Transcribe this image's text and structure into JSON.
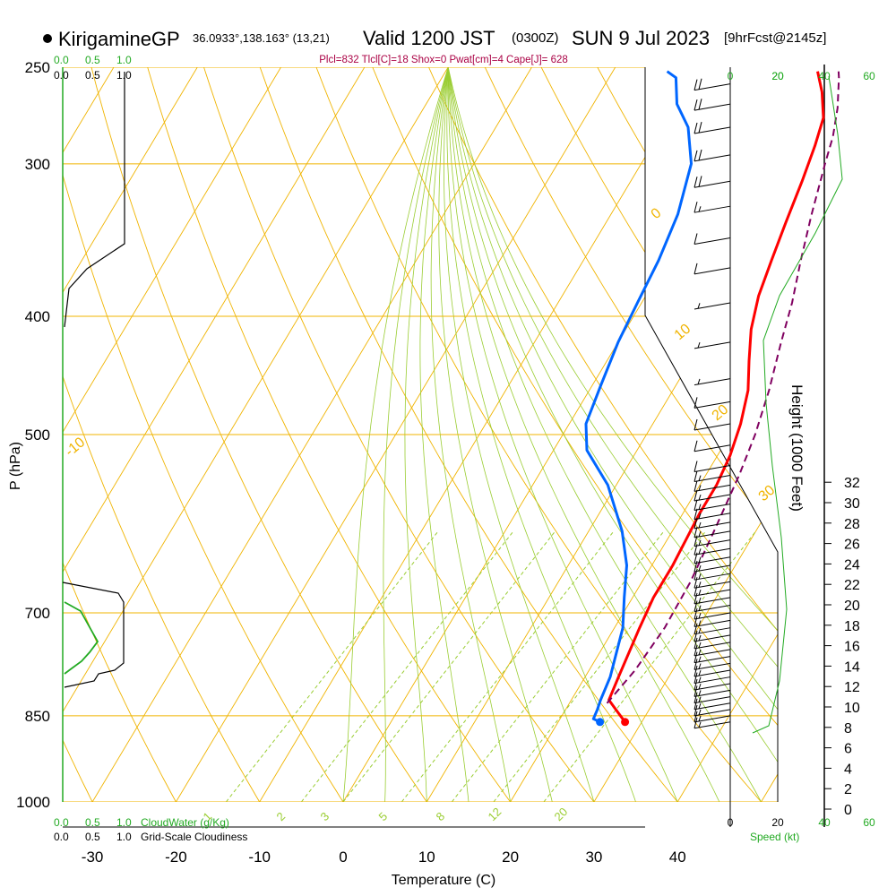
{
  "header": {
    "station": "KirigamineGP",
    "location": "36.0933°,138.163° (13,21)",
    "valid_main": "Valid 1200 JST",
    "valid_utc": "(0300Z)",
    "date": "SUN 9 Jul 2023",
    "forecast": "[9hrFcst@2145z]",
    "params": "Plcl=832 Tlcl[C]=18 Shox=0 Pwat[cm]=4 Cape[J]= 628"
  },
  "colors": {
    "isotherm": "#f0b400",
    "mixing_ratio": "#9acd32",
    "temperature": "#ff0000",
    "dewpoint": "#0066ff",
    "parcel": "#800060",
    "cloud_water": "#22aa22",
    "params_text": "#aa0044"
  },
  "chart_data": {
    "type": "line",
    "title": "KirigamineGP Valid 1200 JST SUN 9 Jul 2023",
    "xlabel": "Temperature (C)",
    "ylabel": "P (hPa)",
    "right_ylabel": "Height (1000 Feet)",
    "x_ticks": [
      -30,
      -20,
      -10,
      0,
      10,
      20,
      30,
      40
    ],
    "y_ticks": [
      250,
      300,
      400,
      500,
      700,
      850,
      1000
    ],
    "height_ticks": [
      0,
      2,
      4,
      6,
      8,
      10,
      12,
      14,
      16,
      18,
      20,
      22,
      24,
      26,
      28,
      30,
      32
    ],
    "skewt_label_vals": [
      -10,
      0,
      10,
      20,
      30
    ],
    "mixing_ratio_lines": [
      1,
      2,
      3,
      5,
      8,
      12,
      20
    ],
    "panel_labels": {
      "top_cloud_green": [
        "0.0",
        "0.5",
        "1.0"
      ],
      "top_cloud_black": [
        "0.0",
        "0.5",
        "1.0"
      ],
      "bottom_cloud_green": [
        "0.0",
        "0.5",
        "1.0"
      ],
      "bottom_cloud_black": [
        "0.0",
        "0.5",
        "1.0"
      ],
      "cloud_water_title": "CloudWater (g/Kg)",
      "cloudiness_title": "Grid-Scale Cloudiness",
      "wind_top_black": [
        "0",
        "20"
      ],
      "wind_top_green": [
        "20",
        "40",
        "60"
      ],
      "wind_bottom_black": [
        "0",
        "20"
      ],
      "wind_bottom_green": [
        "40",
        "60"
      ],
      "speed_title": "Speed (kt)"
    },
    "series": [
      {
        "name": "Temperature",
        "points": [
          [
            28.0,
            860
          ],
          [
            26.0,
            840
          ],
          [
            24.5,
            825
          ],
          [
            24.0,
            790
          ],
          [
            23.0,
            720
          ],
          [
            22.5,
            680
          ],
          [
            22.5,
            640
          ],
          [
            22.0,
            580
          ],
          [
            22.0,
            550
          ],
          [
            21.5,
            520
          ],
          [
            20.5,
            490
          ],
          [
            19.0,
            460
          ],
          [
            17.0,
            435
          ],
          [
            15.0,
            410
          ],
          [
            13.5,
            385
          ],
          [
            12.5,
            360
          ],
          [
            11.5,
            335
          ],
          [
            10.5,
            310
          ],
          [
            9.5,
            290
          ],
          [
            8.5,
            275
          ],
          [
            6.5,
            262
          ],
          [
            4.5,
            252
          ]
        ]
      },
      {
        "name": "Dewpoint",
        "points": [
          [
            25.0,
            860
          ],
          [
            24.0,
            855
          ],
          [
            23.8,
            840
          ],
          [
            23.5,
            825
          ],
          [
            23.0,
            790
          ],
          [
            21.0,
            720
          ],
          [
            19.0,
            680
          ],
          [
            17.0,
            640
          ],
          [
            14.0,
            600
          ],
          [
            9.0,
            550
          ],
          [
            4.0,
            515
          ],
          [
            2.0,
            490
          ],
          [
            1.0,
            455
          ],
          [
            0.0,
            420
          ],
          [
            -0.5,
            390
          ],
          [
            -1.0,
            360
          ],
          [
            -2.0,
            330
          ],
          [
            -4.0,
            300
          ],
          [
            -7.0,
            280
          ],
          [
            -10.0,
            268
          ],
          [
            -12.0,
            255
          ],
          [
            -13.5,
            252
          ]
        ]
      },
      {
        "name": "Parcel",
        "points": [
          [
            24.5,
            830
          ],
          [
            25.5,
            780
          ],
          [
            26.0,
            720
          ],
          [
            25.8,
            660
          ],
          [
            25.0,
            600
          ],
          [
            24.0,
            540
          ],
          [
            23.0,
            500
          ],
          [
            21.5,
            460
          ],
          [
            19.5,
            420
          ],
          [
            18.0,
            390
          ],
          [
            16.0,
            360
          ],
          [
            14.0,
            330
          ],
          [
            12.0,
            300
          ],
          [
            11.0,
            285
          ],
          [
            9.5,
            270
          ],
          [
            7.5,
            255
          ],
          [
            7.0,
            252
          ]
        ]
      }
    ],
    "surface_temp": 28.0,
    "surface_dewpoint": 25.0,
    "surface_pressure": 860,
    "winds": [
      {
        "p": 860,
        "speed": 15
      },
      {
        "p": 850,
        "speed": 15
      },
      {
        "p": 840,
        "speed": 15
      },
      {
        "p": 830,
        "speed": 15
      },
      {
        "p": 820,
        "speed": 15
      },
      {
        "p": 810,
        "speed": 15
      },
      {
        "p": 800,
        "speed": 15
      },
      {
        "p": 790,
        "speed": 15
      },
      {
        "p": 780,
        "speed": 15
      },
      {
        "p": 770,
        "speed": 15
      },
      {
        "p": 760,
        "speed": 15
      },
      {
        "p": 750,
        "speed": 15
      },
      {
        "p": 740,
        "speed": 15
      },
      {
        "p": 730,
        "speed": 15
      },
      {
        "p": 720,
        "speed": 15
      },
      {
        "p": 710,
        "speed": 15
      },
      {
        "p": 700,
        "speed": 15
      },
      {
        "p": 690,
        "speed": 15
      },
      {
        "p": 680,
        "speed": 15
      },
      {
        "p": 670,
        "speed": 15
      },
      {
        "p": 660,
        "speed": 15
      },
      {
        "p": 650,
        "speed": 15
      },
      {
        "p": 640,
        "speed": 15
      },
      {
        "p": 630,
        "speed": 15
      },
      {
        "p": 620,
        "speed": 15
      },
      {
        "p": 610,
        "speed": 15
      },
      {
        "p": 600,
        "speed": 15
      },
      {
        "p": 590,
        "speed": 15
      },
      {
        "p": 580,
        "speed": 15
      },
      {
        "p": 570,
        "speed": 15
      },
      {
        "p": 560,
        "speed": 15
      },
      {
        "p": 550,
        "speed": 15
      },
      {
        "p": 540,
        "speed": 15
      },
      {
        "p": 530,
        "speed": 10
      },
      {
        "p": 510,
        "speed": 10
      },
      {
        "p": 490,
        "speed": 10
      },
      {
        "p": 470,
        "speed": 10
      },
      {
        "p": 450,
        "speed": 5
      },
      {
        "p": 420,
        "speed": 5
      },
      {
        "p": 390,
        "speed": 5
      },
      {
        "p": 365,
        "speed": 10
      },
      {
        "p": 345,
        "speed": 10
      },
      {
        "p": 325,
        "speed": 15
      },
      {
        "p": 310,
        "speed": 20
      },
      {
        "p": 295,
        "speed": 20
      },
      {
        "p": 280,
        "speed": 20
      },
      {
        "p": 268,
        "speed": 20
      },
      {
        "p": 258,
        "speed": 20
      }
    ]
  }
}
